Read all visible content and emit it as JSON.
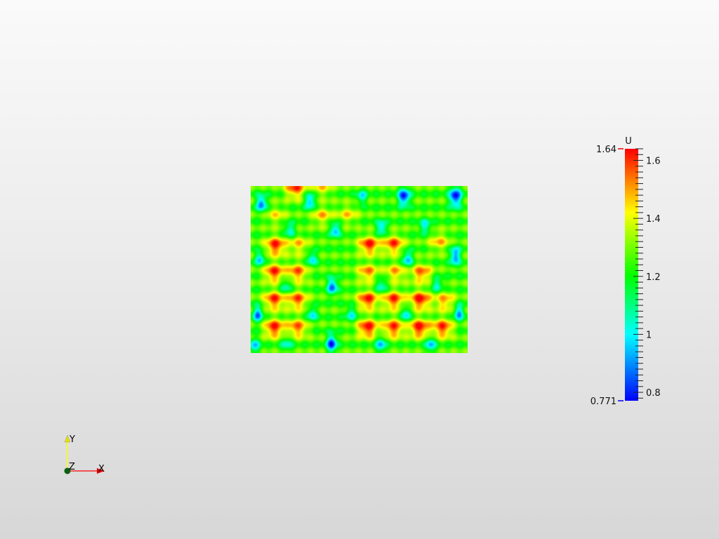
{
  "chart_data": {
    "type": "heatmap",
    "title": "",
    "colorbar": {
      "title": "U",
      "range": [
        0.771,
        1.64
      ],
      "range_labels": [
        "1.64",
        "0.771"
      ],
      "ticks": [
        1.6,
        1.4,
        1.2,
        1,
        0.8
      ],
      "tick_labels": [
        "1.6",
        "1.4",
        "1.2",
        "1",
        "0.8"
      ],
      "minor_tick_step": 0.02,
      "colormap": "jet (blue-cyan-green-yellow-red)",
      "colormap_stops": [
        {
          "value": 0.771,
          "color": "#0000ff"
        },
        {
          "value": 1.0,
          "color": "#00ffff"
        },
        {
          "value": 1.2,
          "color": "#00ff00"
        },
        {
          "value": 1.42,
          "color": "#ffff00"
        },
        {
          "value": 1.64,
          "color": "#ff0000"
        }
      ]
    }
  },
  "orientation_axes": {
    "x_label": "X",
    "y_label": "Y",
    "z_label": "Z",
    "x_color": "#ff0000",
    "y_color": "#ffff00",
    "z_color": "#006400"
  }
}
